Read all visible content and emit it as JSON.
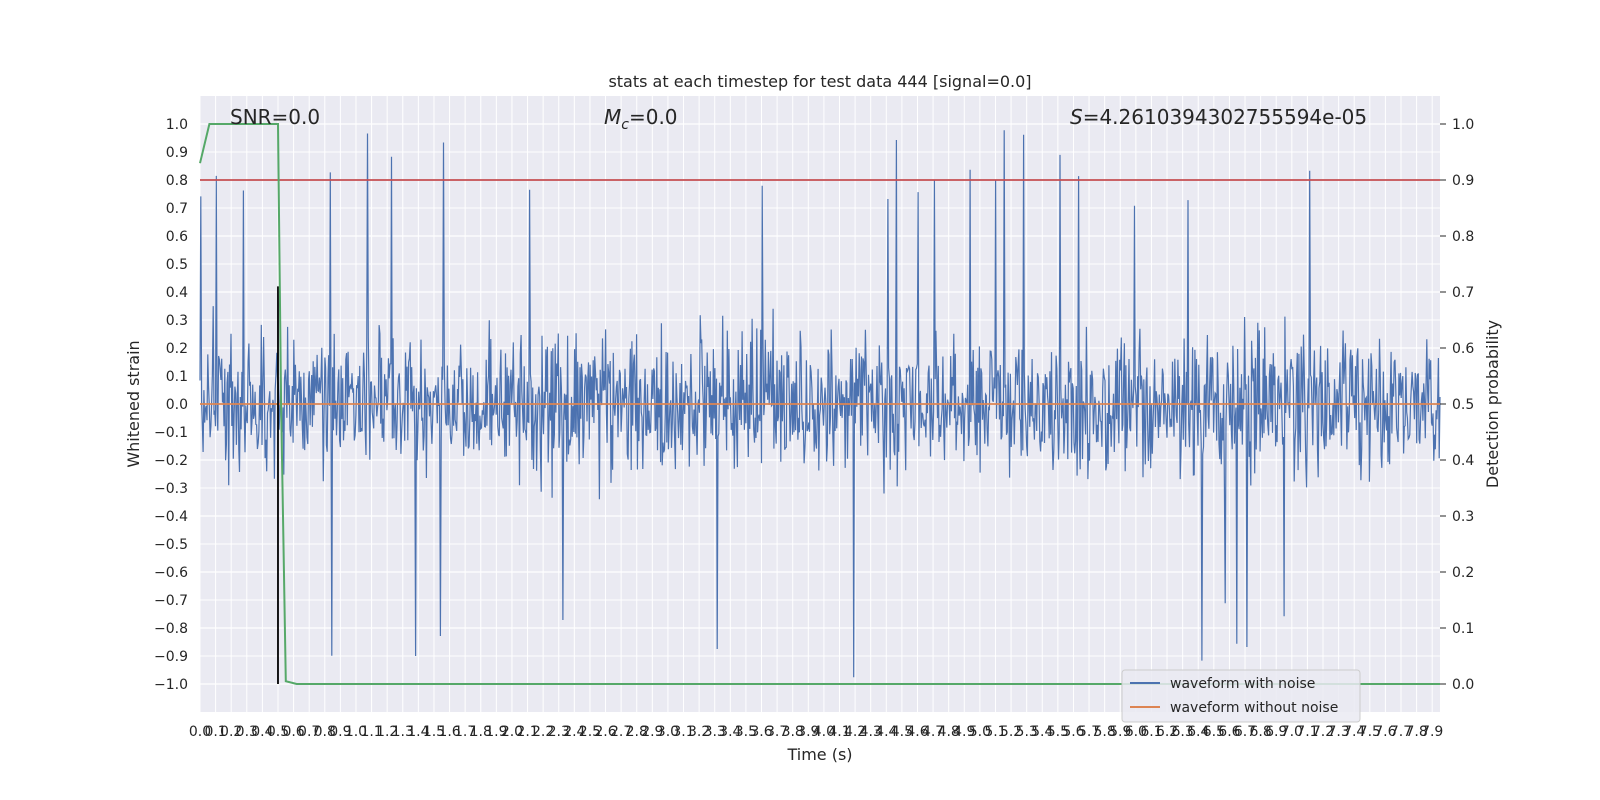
{
  "chart_data": {
    "type": "line",
    "title": "stats at each timestep for test data 444 [signal=0.0]",
    "xlabel": "Time (s)",
    "ylabel_left": "Whitened strain",
    "ylabel_right": "Detection probability",
    "xlim": [
      0.0,
      7.95
    ],
    "ylim_left": [
      -1.1,
      1.1
    ],
    "ylim_right": [
      -0.05,
      1.05
    ],
    "x_ticks": [
      "0.0",
      "0.1",
      "0.2",
      "0.3",
      "0.4",
      "0.5",
      "0.6",
      "0.7",
      "0.8",
      "0.9",
      "1.0",
      "1.1",
      "1.2",
      "1.3",
      "1.4",
      "1.5",
      "1.6",
      "1.7",
      "1.8",
      "1.9",
      "2.0",
      "2.1",
      "2.2",
      "2.3",
      "2.4",
      "2.5",
      "2.6",
      "2.7",
      "2.8",
      "2.9",
      "3.0",
      "3.1",
      "3.2",
      "3.3",
      "3.4",
      "3.5",
      "3.6",
      "3.7",
      "3.8",
      "3.9",
      "4.0",
      "4.1",
      "4.2",
      "4.3",
      "4.4",
      "4.5",
      "4.6",
      "4.7",
      "4.8",
      "4.9",
      "5.0",
      "5.1",
      "5.2",
      "5.3",
      "5.4",
      "5.5",
      "5.6",
      "5.7",
      "5.8",
      "5.9",
      "6.0",
      "6.1",
      "6.2",
      "6.3",
      "6.4",
      "6.5",
      "6.6",
      "6.7",
      "6.8",
      "6.9",
      "7.0",
      "7.1",
      "7.2",
      "7.3",
      "7.4",
      "7.5",
      "7.6",
      "7.7",
      "7.8",
      "7.9"
    ],
    "y_ticks_left": [
      "1.0",
      "0.9",
      "0.8",
      "0.7",
      "0.6",
      "0.5",
      "0.4",
      "0.3",
      "0.2",
      "0.1",
      "0.0",
      "−0.1",
      "−0.2",
      "−0.3",
      "−0.4",
      "−0.5",
      "−0.6",
      "−0.7",
      "−0.8",
      "−0.9",
      "−1.0"
    ],
    "y_ticks_right": [
      "1.0",
      "0.9",
      "0.8",
      "0.7",
      "0.6",
      "0.5",
      "0.4",
      "0.3",
      "0.2",
      "0.1",
      "0.0"
    ],
    "annotations": {
      "snr": "SNR=0.0",
      "mc_symbol": "M",
      "mc_sub": "c",
      "mc_value": "=0.0",
      "s_symbol": "S",
      "s_value": "=4.2610394302755594e-05"
    },
    "legend": {
      "placement": "lower-right",
      "entries": [
        "waveform with noise",
        "waveform without noise"
      ]
    },
    "series": [
      {
        "name": "waveform with noise",
        "color": "#4c72b0",
        "description": "noisy strain, amplitude mostly within ±0.6, peaks near 0.98 and -1.0"
      },
      {
        "name": "waveform without noise",
        "color": "#dd8452",
        "values_constant": 0.0
      },
      {
        "name": "",
        "color": "#55a868",
        "axis": "right",
        "x": [
          0.0,
          0.06,
          0.5,
          0.52,
          0.55,
          0.62,
          7.95
        ],
        "y": [
          0.93,
          1.0,
          1.0,
          0.5,
          0.005,
          0.0,
          0.0
        ]
      }
    ],
    "threshold": {
      "color": "#c44e52",
      "axis": "right",
      "value": 0.9
    },
    "marker_line": {
      "color": "#000000",
      "x": 0.5,
      "y_range": [
        -1.0,
        0.42
      ]
    },
    "grid": true,
    "colors": {
      "axes_bg": "#eaeaf2",
      "grid": "#ffffff",
      "noise": "#4c72b0",
      "clean": "#dd8452",
      "prob": "#55a868",
      "threshold": "#c44e52"
    }
  }
}
